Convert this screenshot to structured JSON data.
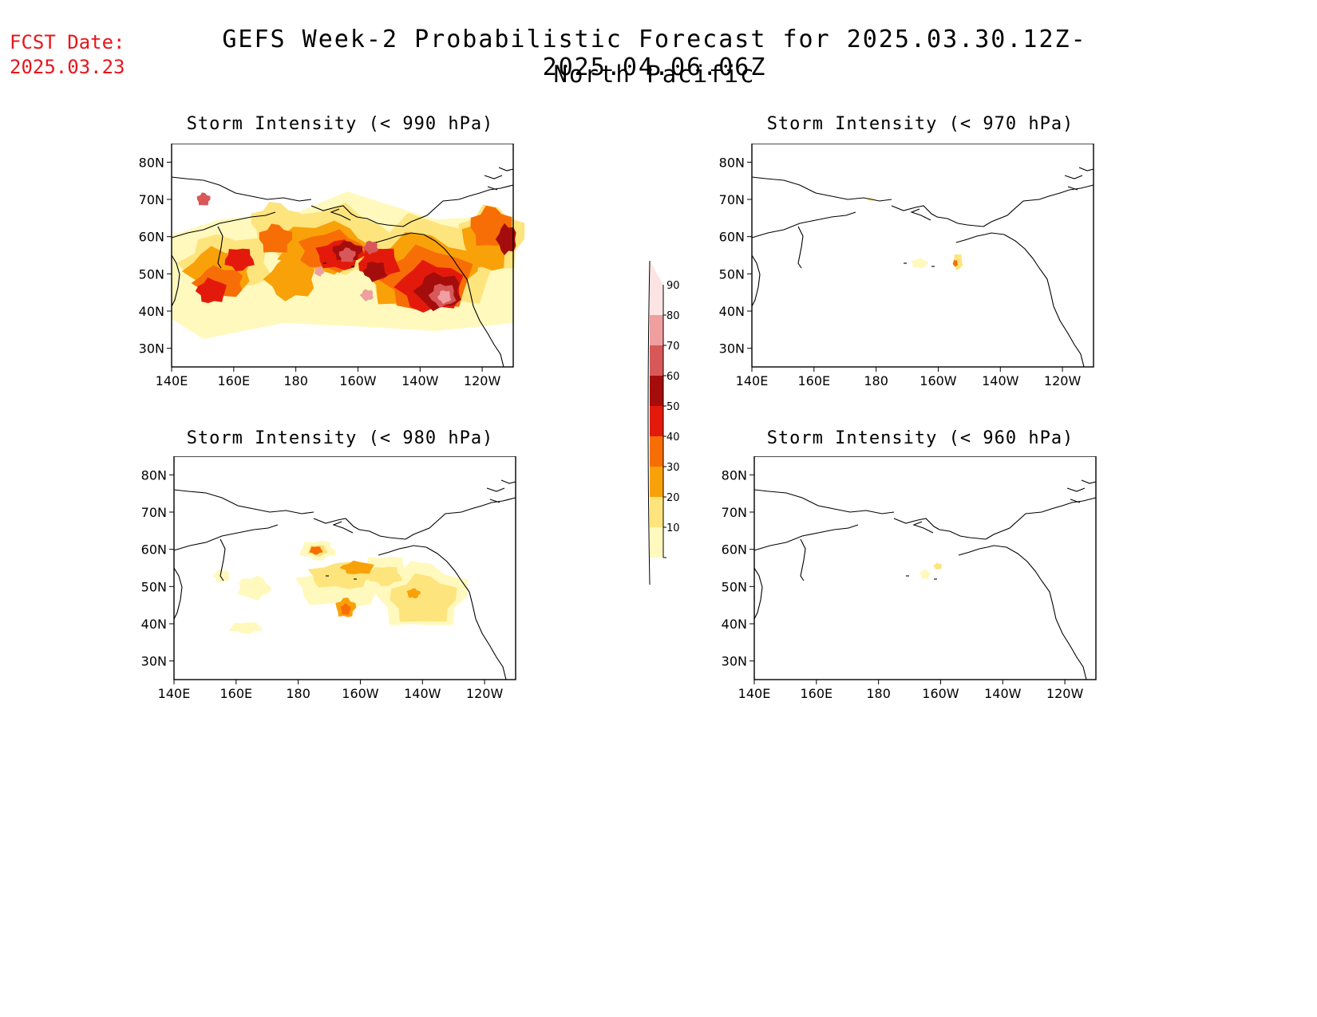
{
  "fcst_date": {
    "label": "FCST Date:",
    "value": "2025.03.23"
  },
  "header": {
    "title": "GEFS Week-2 Probabilistic Forecast for 2025.03.30.12Z-2025.04.06.06Z",
    "region": "North Pacific"
  },
  "axes": {
    "lat_labels": [
      "80N",
      "70N",
      "60N",
      "50N",
      "40N",
      "30N"
    ],
    "lon_labels": [
      "140E",
      "160E",
      "180",
      "160W",
      "140W",
      "120W"
    ]
  },
  "panels": [
    {
      "id": "p990",
      "title": "Storm Intensity (< 990 hPa)"
    },
    {
      "id": "p970",
      "title": "Storm Intensity (< 970 hPa)"
    },
    {
      "id": "p980",
      "title": "Storm Intensity (< 980 hPa)"
    },
    {
      "id": "p960",
      "title": "Storm Intensity (< 960 hPa)"
    }
  ],
  "colorbar": {
    "levels": [
      "10",
      "20",
      "30",
      "40",
      "50",
      "60",
      "70",
      "80",
      "90"
    ],
    "colors": [
      "#fff9be",
      "#fde47d",
      "#f9a108",
      "#f76e06",
      "#e31a0b",
      "#a50d0d",
      "#d8585a",
      "#ef9f9f",
      "#fde4e4"
    ]
  }
}
